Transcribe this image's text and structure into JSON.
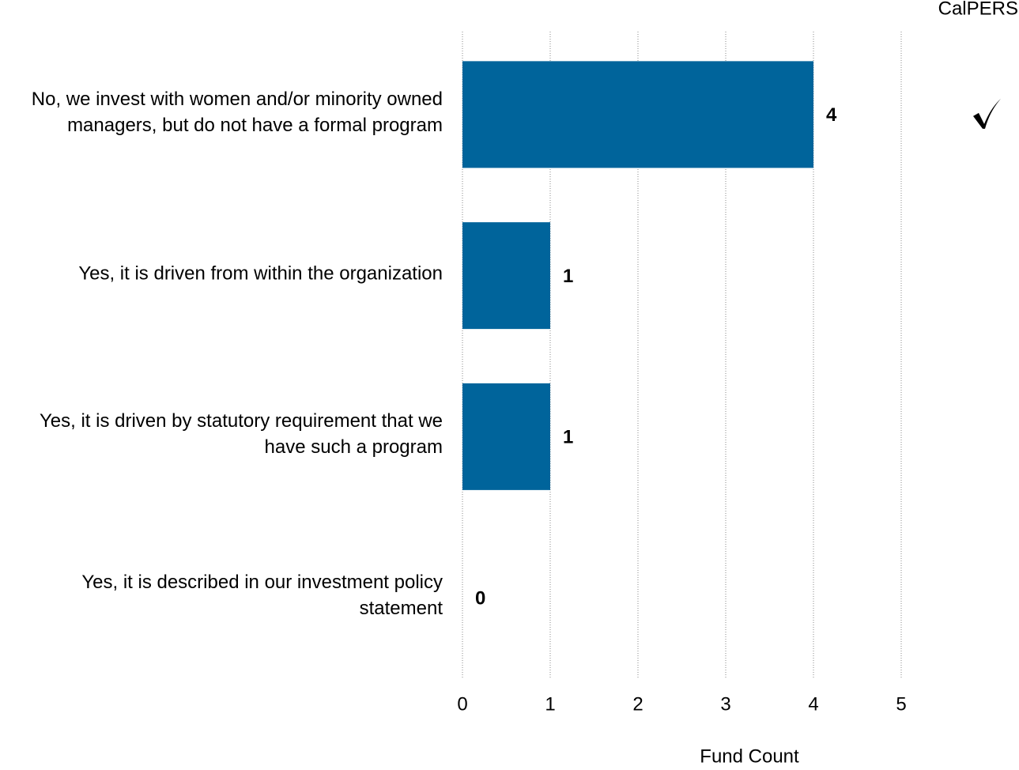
{
  "chart_data": {
    "type": "bar",
    "orientation": "horizontal",
    "categories": [
      "No, we invest with women and/or minority owned managers, but do not have a formal program",
      "Yes, it is driven from within the organization",
      "Yes, it is driven by statutory requirement that we have such a program",
      "Yes, it is described in our investment policy statement"
    ],
    "values": [
      4,
      1,
      1,
      0
    ],
    "color": "#00649b",
    "xlim": [
      0,
      5
    ],
    "xticks": [
      0,
      1,
      2,
      3,
      4,
      5
    ],
    "grid": true,
    "xlabel": "Fund Count",
    "highlight": {
      "label": "CalPERS",
      "category": 0
    }
  }
}
